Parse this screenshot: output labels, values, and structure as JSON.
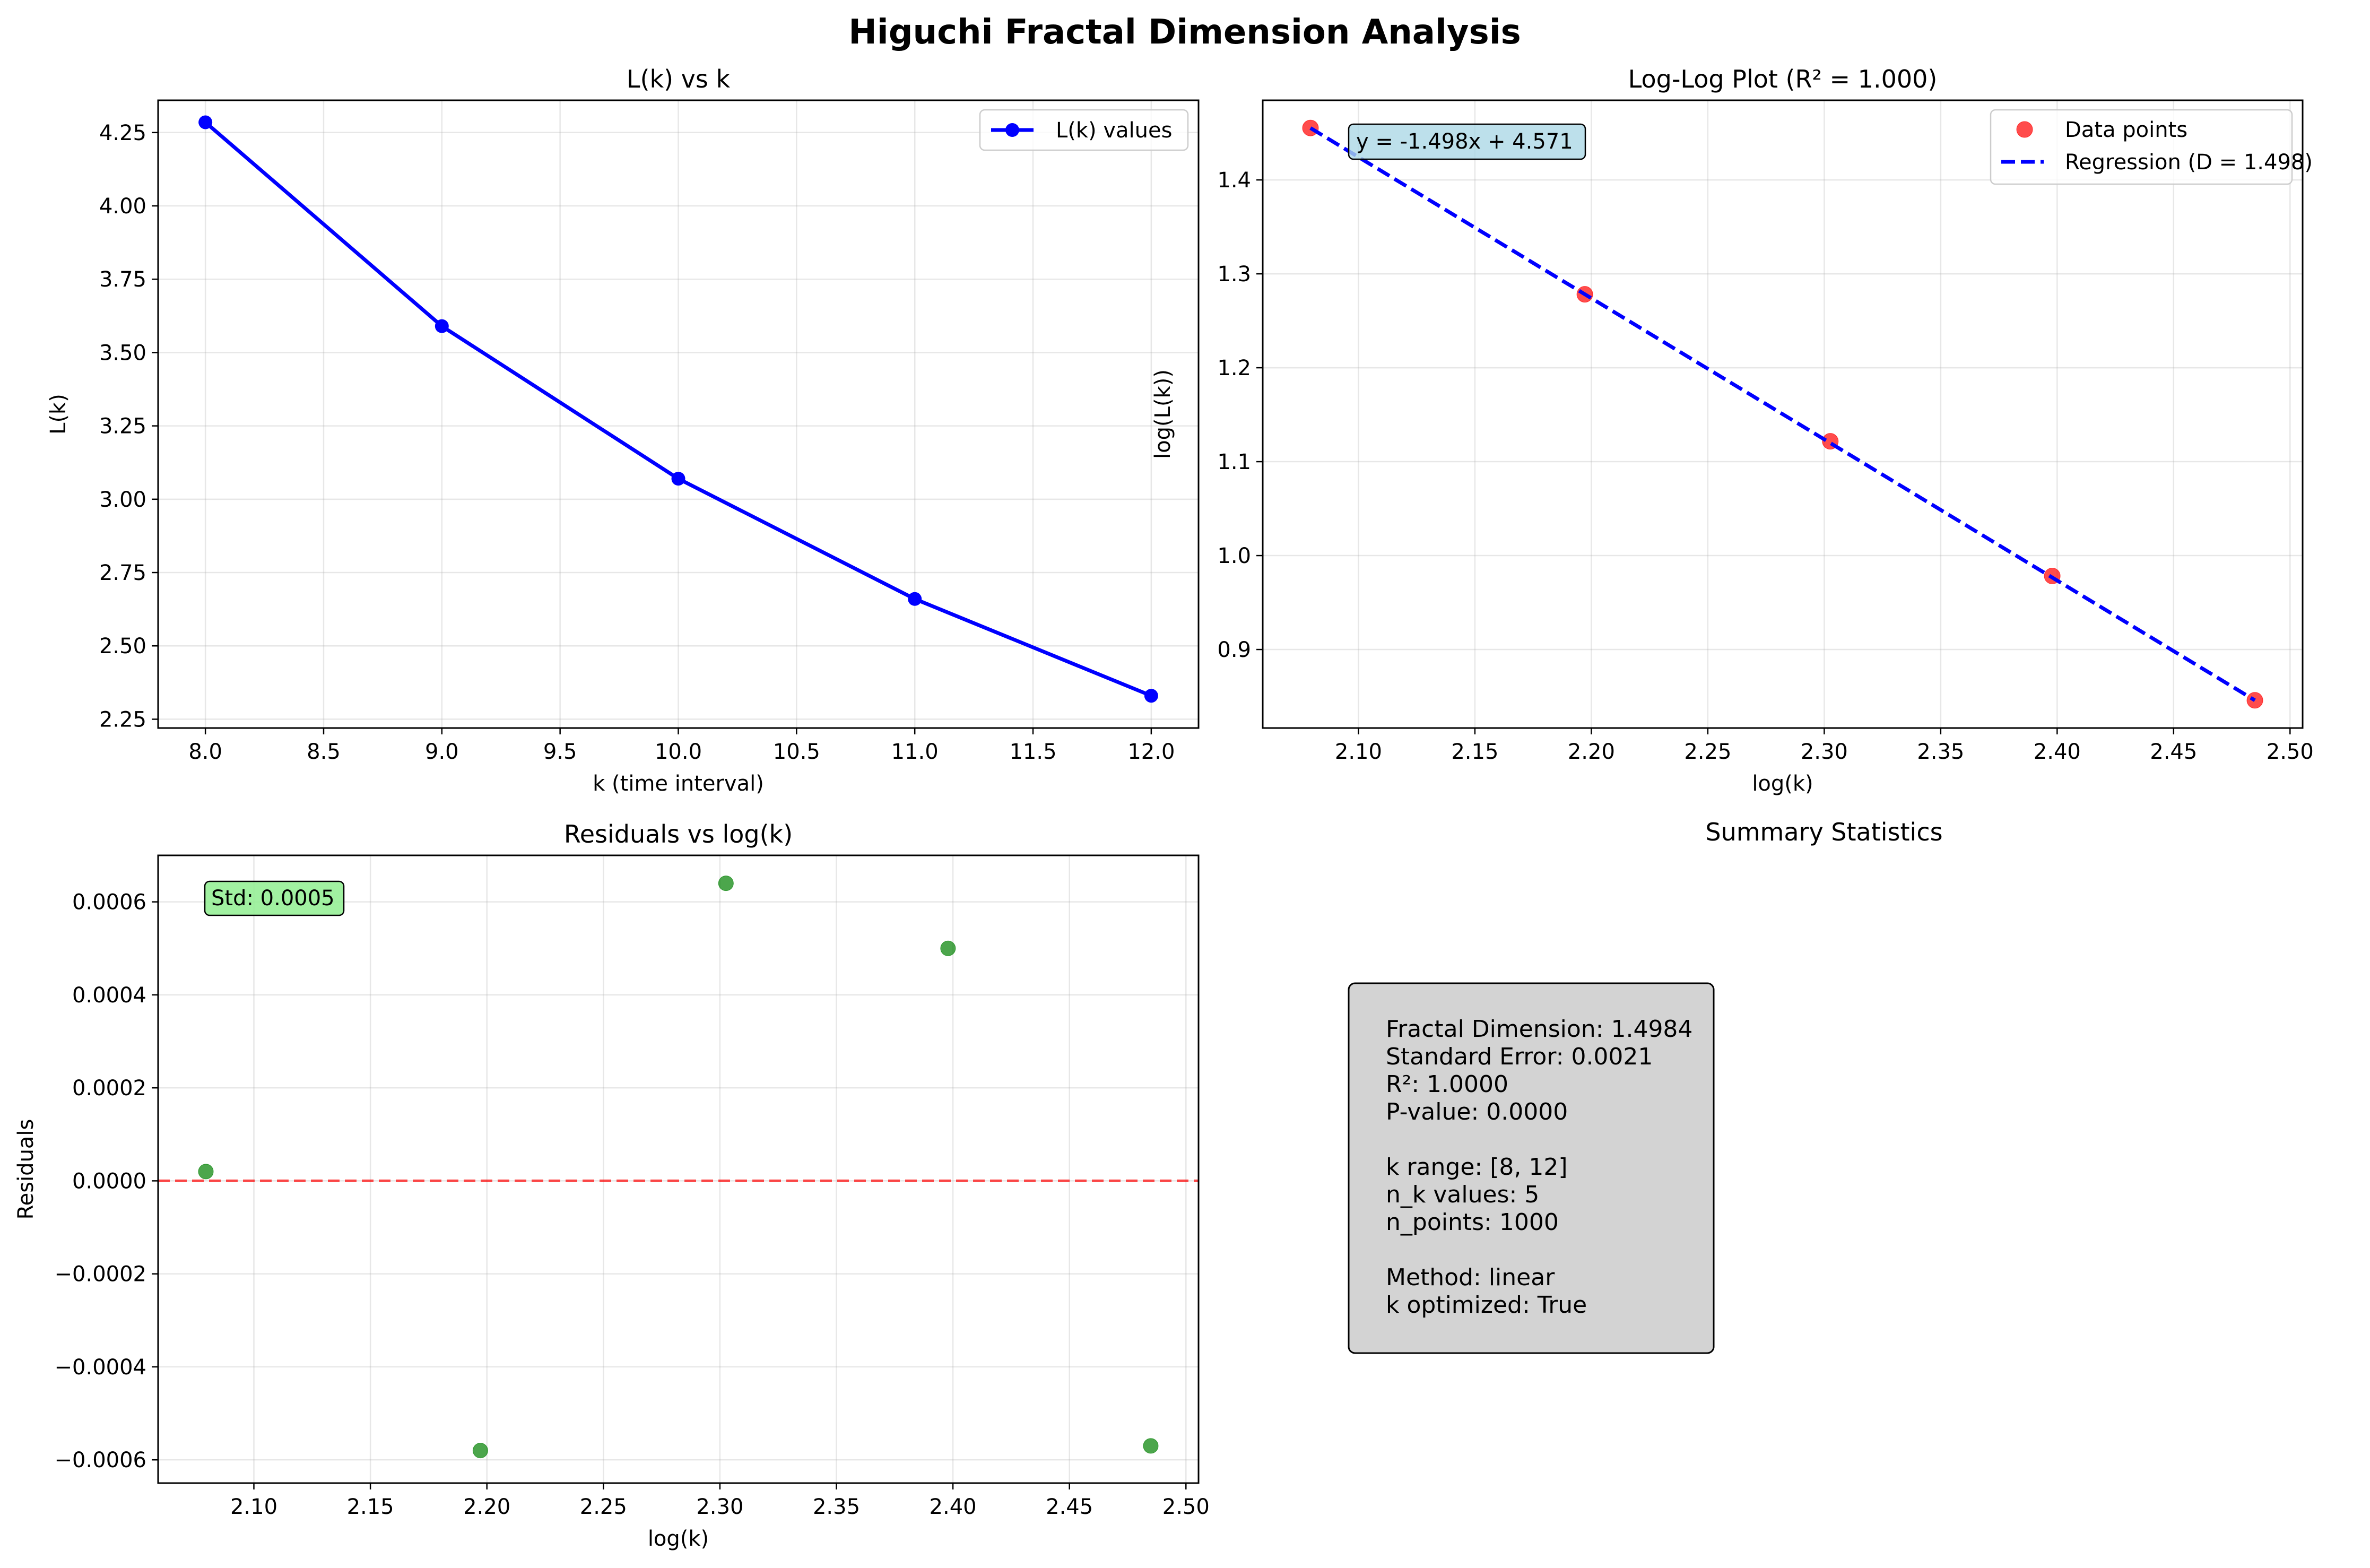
{
  "figure": {
    "title": "Higuchi Fractal Dimension Analysis"
  },
  "chart_data": [
    {
      "type": "line",
      "title": "L(k) vs k",
      "xlabel": "k (time interval)",
      "ylabel": "L(k)",
      "xlim": [
        7.8,
        12.2
      ],
      "ylim": [
        2.22,
        4.36
      ],
      "xticks": [
        8.0,
        8.5,
        9.0,
        9.5,
        10.0,
        10.5,
        11.0,
        11.5,
        12.0
      ],
      "xtick_labels": [
        "8.0",
        "8.5",
        "9.0",
        "9.5",
        "10.0",
        "10.5",
        "11.0",
        "11.5",
        "12.0"
      ],
      "yticks": [
        2.25,
        2.5,
        2.75,
        3.0,
        3.25,
        3.5,
        3.75,
        4.0,
        4.25
      ],
      "ytick_labels": [
        "2.25",
        "2.50",
        "2.75",
        "3.00",
        "3.25",
        "3.50",
        "3.75",
        "4.00",
        "4.25"
      ],
      "grid": true,
      "legend": "top-right",
      "series": [
        {
          "name": "L(k) values",
          "color": "#0000ff",
          "marker": "circle",
          "x": [
            8,
            9,
            10,
            11,
            12
          ],
          "y": [
            4.285,
            3.59,
            3.07,
            2.66,
            2.33
          ]
        }
      ]
    },
    {
      "type": "scatter",
      "title": "Log-Log Plot (R² = 1.000)",
      "xlabel": "log(k)",
      "ylabel": "log(L(k))",
      "xlim": [
        2.0589,
        2.5054
      ],
      "ylim": [
        0.8164,
        1.4848
      ],
      "xticks": [
        2.1,
        2.15,
        2.2,
        2.25,
        2.3,
        2.35,
        2.4,
        2.45,
        2.5
      ],
      "xtick_labels": [
        "2.10",
        "2.15",
        "2.20",
        "2.25",
        "2.30",
        "2.35",
        "2.40",
        "2.45",
        "2.50"
      ],
      "yticks": [
        0.9,
        1.0,
        1.1,
        1.2,
        1.3,
        1.4
      ],
      "ytick_labels": [
        "0.9",
        "1.0",
        "1.1",
        "1.2",
        "1.3",
        "1.4"
      ],
      "grid": true,
      "legend": "top-right",
      "annotation": "y = -1.498x + 4.571",
      "series": [
        {
          "name": "Data points",
          "color": "#ff0000",
          "x": [
            2.0794,
            2.1972,
            2.3026,
            2.3979,
            2.4849
          ],
          "y": [
            1.4553,
            1.2782,
            1.1217,
            0.9783,
            0.8459
          ]
        },
        {
          "name": "Regression (D = 1.498)",
          "color": "#0000ff",
          "style": "dashed",
          "x": [
            2.0794,
            2.4849
          ],
          "y": [
            1.4553,
            0.8459
          ]
        }
      ]
    },
    {
      "type": "scatter",
      "title": "Residuals vs log(k)",
      "xlabel": "log(k)",
      "ylabel": "Residuals",
      "xlim": [
        2.0589,
        2.5054
      ],
      "ylim": [
        -0.00065,
        0.0007
      ],
      "xticks": [
        2.1,
        2.15,
        2.2,
        2.25,
        2.3,
        2.35,
        2.4,
        2.45,
        2.5
      ],
      "xtick_labels": [
        "2.10",
        "2.15",
        "2.20",
        "2.25",
        "2.30",
        "2.35",
        "2.40",
        "2.45",
        "2.50"
      ],
      "yticks": [
        -0.0006,
        -0.0004,
        -0.0002,
        0.0,
        0.0002,
        0.0004,
        0.0006
      ],
      "ytick_labels": [
        "−0.0006",
        "−0.0004",
        "−0.0002",
        "0.0000",
        "0.0002",
        "0.0004",
        "0.0006"
      ],
      "grid": true,
      "annotation": "Std: 0.0005",
      "reference_line": {
        "y": 0,
        "color": "#ff0000",
        "style": "dashed"
      },
      "series": [
        {
          "color": "#008000",
          "x": [
            2.0794,
            2.1972,
            2.3026,
            2.3979,
            2.4849
          ],
          "y": [
            2e-05,
            -0.00058,
            0.00064,
            0.0005,
            -0.00057
          ]
        }
      ]
    }
  ],
  "summary": {
    "title": "Summary Statistics",
    "lines": [
      "Fractal Dimension: 1.4984",
      "Standard Error: 0.0021",
      "R²: 1.0000",
      "P-value: 0.0000",
      "",
      "k range: [8, 12]",
      "n_k values: 5",
      "n_points: 1000",
      "",
      "Method: linear",
      "k optimized: True"
    ]
  }
}
